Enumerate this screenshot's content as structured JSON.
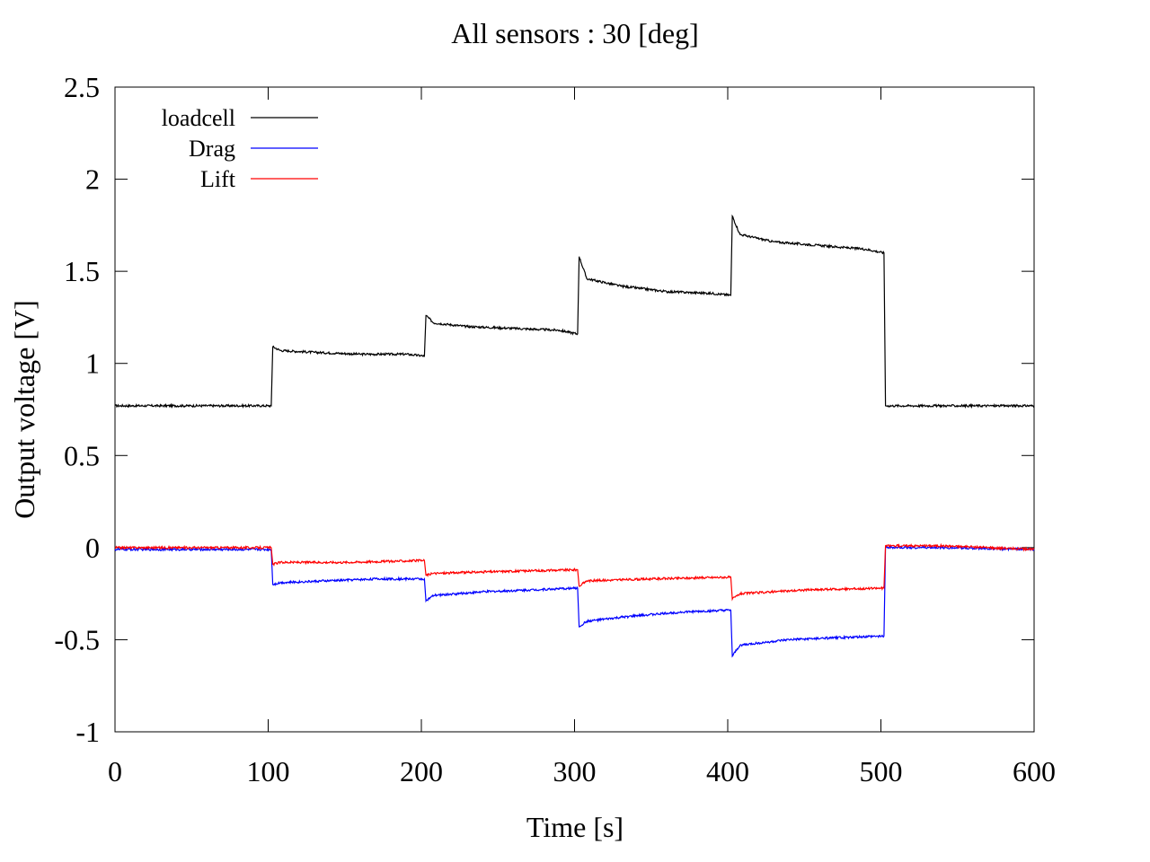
{
  "chart_data": {
    "type": "line",
    "title": "All sensors : 30 [deg]",
    "xlabel": "Time [s]",
    "ylabel": "Output voltage [V]",
    "xlim": [
      0,
      600
    ],
    "ylim": [
      -1,
      2.5
    ],
    "x_ticks": [
      "0",
      "100",
      "200",
      "300",
      "400",
      "500",
      "600"
    ],
    "y_ticks": [
      "-1",
      "-0.5",
      "0",
      "0.5",
      "1",
      "1.5",
      "2",
      "2.5"
    ],
    "grid": false,
    "legend_position": "top-left",
    "series": [
      {
        "name": "loadcell",
        "color": "#000000",
        "x": [
          0,
          102,
          103,
          108,
          130,
          160,
          190,
          202,
          203,
          208,
          230,
          260,
          290,
          302,
          303,
          308,
          330,
          360,
          390,
          402,
          403,
          408,
          430,
          460,
          490,
          502,
          503,
          520,
          560,
          600
        ],
        "y": [
          0.77,
          0.77,
          1.09,
          1.07,
          1.06,
          1.05,
          1.05,
          1.04,
          1.26,
          1.22,
          1.2,
          1.19,
          1.18,
          1.16,
          1.58,
          1.46,
          1.42,
          1.39,
          1.38,
          1.37,
          1.8,
          1.7,
          1.66,
          1.64,
          1.62,
          1.6,
          0.77,
          0.77,
          0.77,
          0.77
        ]
      },
      {
        "name": "Drag",
        "color": "#0000ff",
        "x": [
          0,
          102,
          103,
          108,
          140,
          170,
          202,
          203,
          208,
          240,
          270,
          302,
          303,
          308,
          340,
          370,
          402,
          403,
          408,
          440,
          470,
          502,
          503,
          540,
          600
        ],
        "y": [
          -0.01,
          -0.01,
          -0.2,
          -0.19,
          -0.18,
          -0.17,
          -0.17,
          -0.29,
          -0.26,
          -0.24,
          -0.23,
          -0.22,
          -0.43,
          -0.4,
          -0.37,
          -0.35,
          -0.34,
          -0.59,
          -0.53,
          -0.5,
          -0.49,
          -0.48,
          0.0,
          0.0,
          -0.01
        ]
      },
      {
        "name": "Lift",
        "color": "#ff0000",
        "x": [
          0,
          102,
          103,
          108,
          150,
          202,
          203,
          208,
          250,
          302,
          303,
          308,
          350,
          402,
          403,
          408,
          450,
          502,
          503,
          540,
          600
        ],
        "y": [
          0.0,
          0.0,
          -0.09,
          -0.08,
          -0.08,
          -0.07,
          -0.15,
          -0.14,
          -0.13,
          -0.12,
          -0.21,
          -0.18,
          -0.17,
          -0.16,
          -0.28,
          -0.25,
          -0.23,
          -0.22,
          0.01,
          0.01,
          -0.01
        ]
      }
    ]
  }
}
